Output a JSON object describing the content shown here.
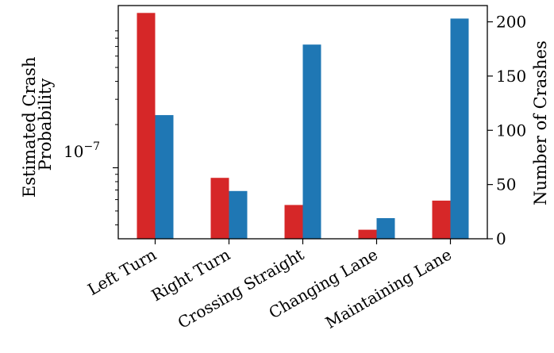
{
  "chart_data": {
    "type": "bar",
    "categories": [
      "Left Turn",
      "Right Turn",
      "Crossing Straight",
      "Changing Lane",
      "Maintaining Lane"
    ],
    "left_axis": {
      "label_lines": [
        "Estimated Crash",
        "Probability"
      ],
      "scale": "log",
      "range": [
        3.2e-08,
        1.35e-06
      ],
      "tick_label_base": "10",
      "tick_label_exp": "−7",
      "major_tick_value": 1e-07,
      "minor_tick_values": [
        4e-08,
        5e-08,
        6e-08,
        7e-08,
        8e-08,
        9e-08,
        2e-07,
        3e-07,
        4e-07,
        5e-07,
        6e-07,
        7e-07,
        8e-07,
        9e-07
      ]
    },
    "right_axis": {
      "label": "Number of Crashes",
      "scale": "linear",
      "range": [
        0,
        215
      ],
      "ticks": [
        0,
        50,
        100,
        150,
        200
      ]
    },
    "series": [
      {
        "axis": "left",
        "color": "#d62728",
        "values": [
          1.2e-06,
          8.5e-08,
          5.5e-08,
          3.7e-08,
          5.9e-08
        ]
      },
      {
        "axis": "right",
        "color": "#1f77b4",
        "values": [
          114,
          44,
          179,
          19,
          203
        ]
      }
    ],
    "grid": false,
    "legend": "none"
  }
}
